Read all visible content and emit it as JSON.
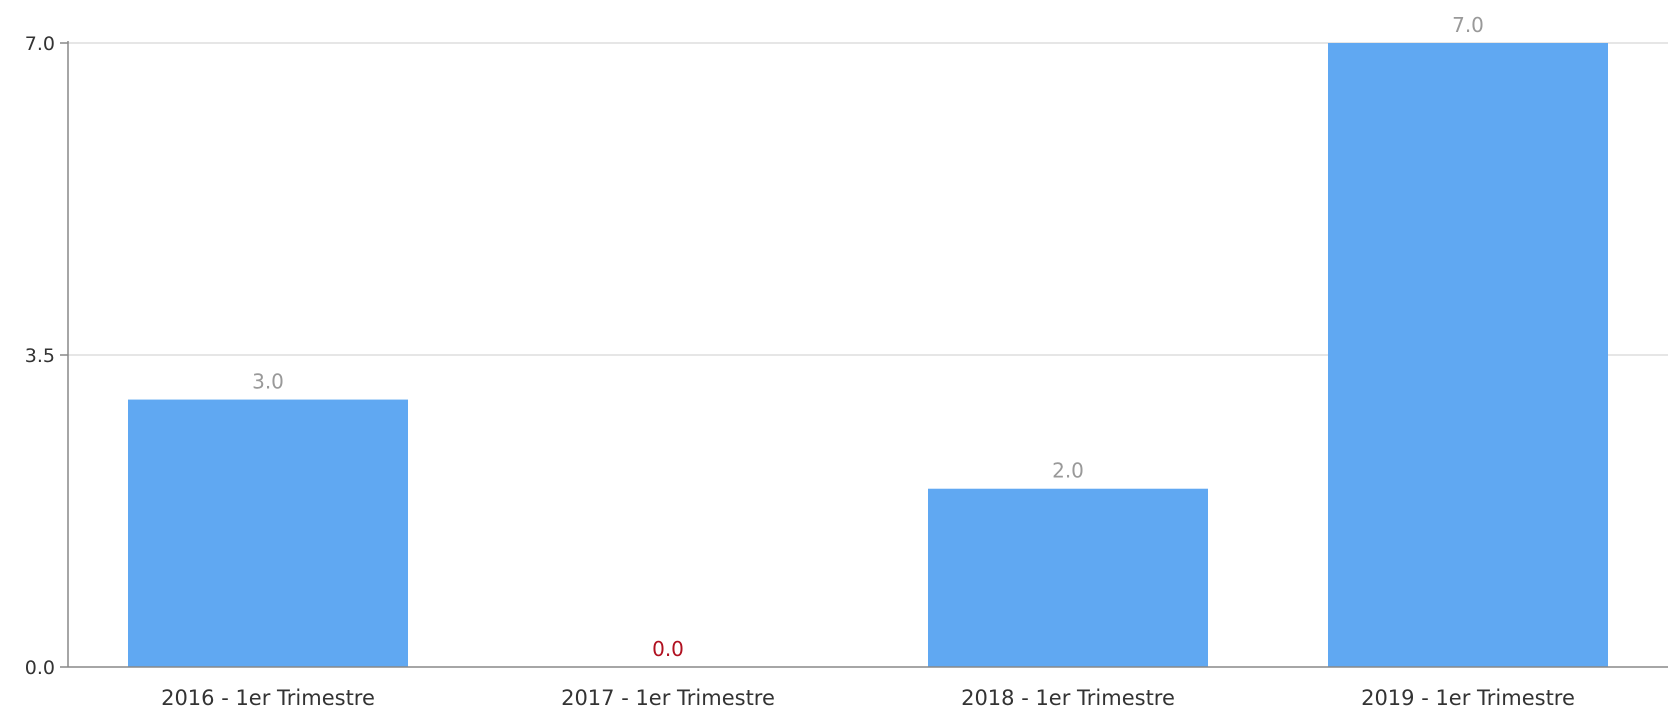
{
  "chart_data": {
    "type": "bar",
    "categories": [
      "2016 - 1er Trimestre",
      "2017 - 1er Trimestre",
      "2018 - 1er Trimestre",
      "2019 - 1er Trimestre"
    ],
    "values": [
      3.0,
      0.0,
      2.0,
      7.0
    ],
    "data_labels": [
      "3.0",
      "0.0",
      "2.0",
      "7.0"
    ],
    "y_ticks": [
      0.0,
      3.5,
      7.0
    ],
    "y_tick_labels": [
      "0.0",
      "3.5",
      "7.0"
    ],
    "ylim": [
      0,
      7
    ],
    "grid": true,
    "title": "",
    "xlabel": "",
    "ylabel": "",
    "colors": {
      "bar": "#60a8f2",
      "data_label": "#999999",
      "zero_label": "#b01020",
      "grid": "#dddddd",
      "axis": "#888888"
    }
  }
}
